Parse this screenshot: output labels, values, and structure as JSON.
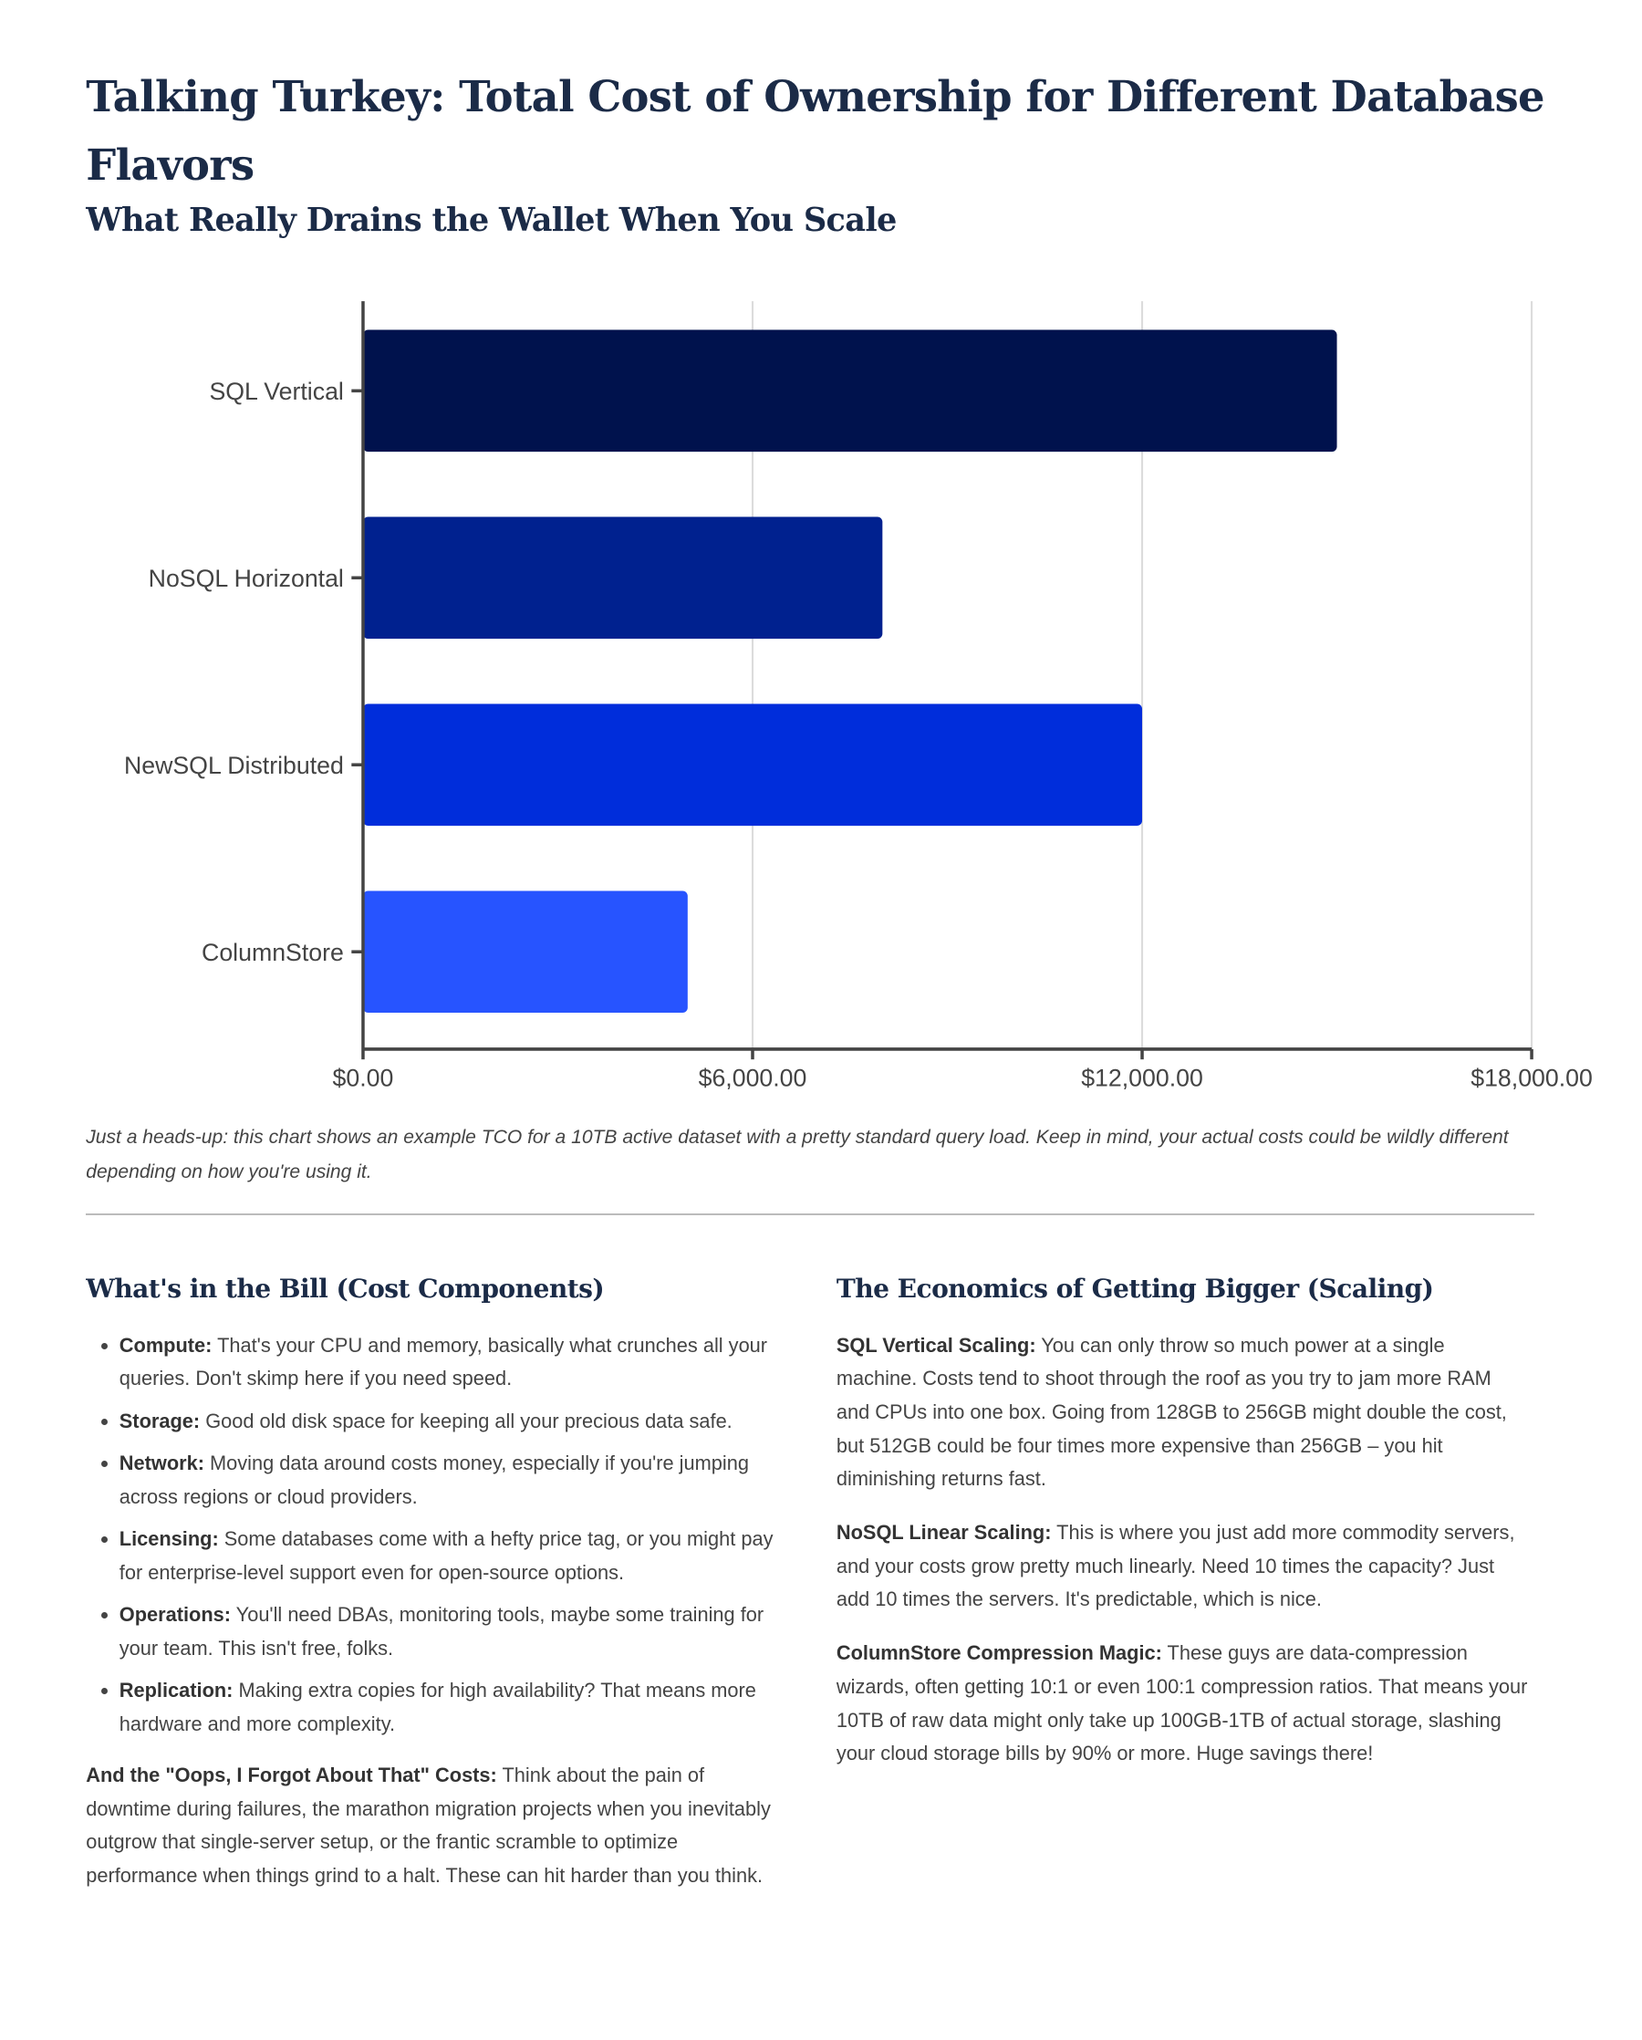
{
  "title": "Talking Turkey: Total Cost of Ownership for Different Database Flavors",
  "subtitle": "What Really Drains the Wallet When You Scale",
  "chart_data": {
    "type": "bar",
    "orientation": "horizontal",
    "categories": [
      "SQL Vertical",
      "NoSQL Horizontal",
      "NewSQL Distributed",
      "ColumnStore"
    ],
    "values": [
      15000,
      8000,
      12000,
      5000
    ],
    "colors": [
      "#00124d",
      "#00218f",
      "#002ddb",
      "#2754ff"
    ],
    "xlim": [
      0,
      18000
    ],
    "xticks": [
      0,
      6000,
      12000,
      18000
    ],
    "xtick_labels": [
      "$0.00",
      "$6,000.00",
      "$12,000.00",
      "$18,000.00"
    ],
    "grid": true,
    "xlabel": "",
    "ylabel": "",
    "title": ""
  },
  "caption": "Just a heads-up: this chart shows an example TCO for a 10TB active dataset with a pretty standard query load. Keep in mind, your actual costs could be wildly different depending on how you're using it.",
  "left": {
    "heading": "What's in the Bill (Cost Components)",
    "items": [
      {
        "label": "Compute:",
        "text": " That's your CPU and memory, basically what crunches all your queries. Don't skimp here if you need speed."
      },
      {
        "label": "Storage:",
        "text": " Good old disk space for keeping all your precious data safe."
      },
      {
        "label": "Network:",
        "text": " Moving data around costs money, especially if you're jumping across regions or cloud providers."
      },
      {
        "label": "Licensing:",
        "text": " Some databases come with a hefty price tag, or you might pay for enterprise-level support even for open-source options."
      },
      {
        "label": "Operations:",
        "text": " You'll need DBAs, monitoring tools, maybe some training for your team. This isn't free, folks."
      },
      {
        "label": "Replication:",
        "text": " Making extra copies for high availability? That means more hardware and more complexity."
      }
    ],
    "extra_label": "And the \"Oops, I Forgot About That\" Costs:",
    "extra_text": " Think about the pain of downtime during failures, the marathon migration projects when you inevitably outgrow that single-server setup, or the frantic scramble to optimize performance when things grind to a halt. These can hit harder than you think."
  },
  "right": {
    "heading": "The Economics of Getting Bigger (Scaling)",
    "paras": [
      {
        "label": "SQL Vertical Scaling:",
        "text": " You can only throw so much power at a single machine. Costs tend to shoot through the roof as you try to jam more RAM and CPUs into one box. Going from 128GB to 256GB might double the cost, but 512GB could be four times more expensive than 256GB – you hit diminishing returns fast."
      },
      {
        "label": "NoSQL Linear Scaling:",
        "text": " This is where you just add more commodity servers, and your costs grow pretty much linearly. Need 10 times the capacity? Just add 10 times the servers. It's predictable, which is nice."
      },
      {
        "label": "ColumnStore Compression Magic:",
        "text": " These guys are data-compression wizards, often getting 10:1 or even 100:1 compression ratios. That means your 10TB of raw data might only take up 100GB-1TB of actual storage, slashing your cloud storage bills by 90% or more. Huge savings there!"
      }
    ]
  }
}
